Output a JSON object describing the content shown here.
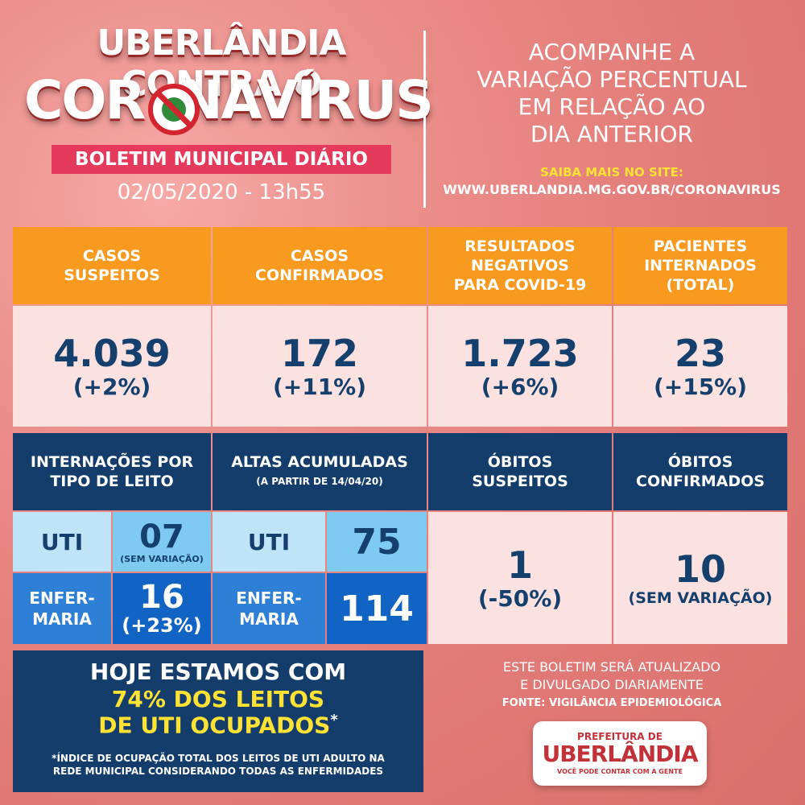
{
  "header": {
    "title_line1": "UBERLÂNDIA CONTRA O",
    "title_line2": "COR  NAVÍRUS",
    "bulletin": "BOLETIM MUNICIPAL DIÁRIO",
    "date": "02/05/2020 - 13h55"
  },
  "right_panel": {
    "line1": "ACOMPANHE A",
    "line2": "VARIAÇÃO PERCENTUAL",
    "line3": "EM RELAÇÃO AO",
    "line4": "DIA ANTERIOR",
    "saiba": "SAIBA MAIS NO SITE:",
    "site": "WWW.UBERLANDIA.MG.GOV.BR/CORONAVIRUS"
  },
  "top_stats": [
    {
      "label_l1": "CASOS",
      "label_l2": "SUSPEITOS",
      "label_l3": "",
      "value": "4.039",
      "change": "(+2%)"
    },
    {
      "label_l1": "CASOS",
      "label_l2": "CONFIRMADOS",
      "label_l3": "",
      "value": "172",
      "change": "(+11%)"
    },
    {
      "label_l1": "RESULTADOS",
      "label_l2": "NEGATIVOS",
      "label_l3": "PARA COVID-19",
      "value": "1.723",
      "change": "(+6%)"
    },
    {
      "label_l1": "PACIENTES",
      "label_l2": "INTERNADOS",
      "label_l3": "(TOTAL)",
      "value": "23",
      "change": "(+15%)"
    }
  ],
  "internacoes": {
    "label_l1": "INTERNAÇÕES POR",
    "label_l2": "TIPO DE LEITO",
    "uti_label": "UTI",
    "uti_value": "07",
    "uti_change": "(SEM VARIAÇÃO)",
    "enf_label_l1": "ENFER-",
    "enf_label_l2": "MARIA",
    "enf_value": "16",
    "enf_change": "(+23%)"
  },
  "altas": {
    "label": "ALTAS ACUMULADAS",
    "sublabel": "(A PARTIR DE 14/04/20)",
    "uti_label": "UTI",
    "uti_value": "75",
    "enf_label_l1": "ENFER-",
    "enf_label_l2": "MARIA",
    "enf_value": "114"
  },
  "obitos_suspeitos": {
    "label_l1": "ÓBITOS",
    "label_l2": "SUSPEITOS",
    "value": "1",
    "change": "(-50%)"
  },
  "obitos_confirmados": {
    "label_l1": "ÓBITOS",
    "label_l2": "CONFIRMADOS",
    "value": "10",
    "change": "(SEM VARIAÇÃO)"
  },
  "occupancy": {
    "line1": "HOJE ESTAMOS COM",
    "line2": "74% DOS LEITOS",
    "line3": "DE UTI OCUPADOS",
    "asterisk": "*",
    "note_l1": "*ÍNDICE DE OCUPAÇÃO TOTAL DOS LEITOS DE UTI ADULTO NA",
    "note_l2": "REDE MUNICIPAL CONSIDERANDO TODAS AS ENFERMIDADES",
    "value_percent": 74
  },
  "footer": {
    "info_l1": "ESTE BOLETIM SERÁ ATUALIZADO",
    "info_l2": "E DIVULGADO DIARIAMENTE",
    "fonte": "FONTE: VIGILÂNCIA EPIDEMIOLÓGICA",
    "logo_l1": "PREFEITURA DE",
    "logo_l2": "UBERLÂNDIA",
    "logo_l3": "VOCÊ PODE CONTAR COM A GENTE"
  },
  "colors": {
    "background": "#e27c78",
    "orange": "#f79a1f",
    "navy": "#143d6b",
    "pink_cell": "#fbe2e0",
    "bulletin_bg": "#e53a5c",
    "highlight_yellow": "#ffe234"
  },
  "icons": {
    "virus": "virus-prohibited-icon"
  }
}
